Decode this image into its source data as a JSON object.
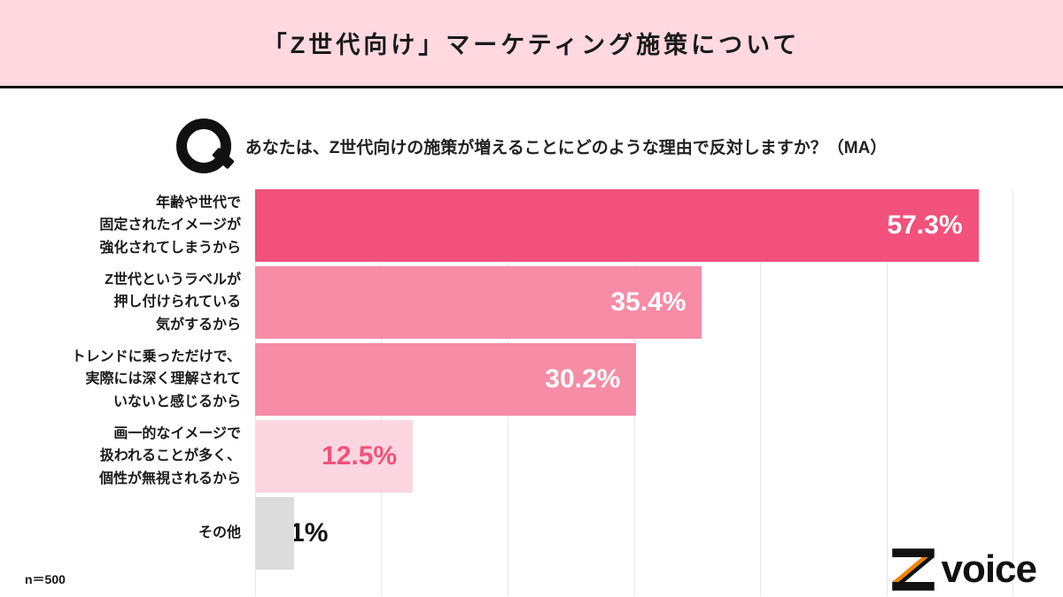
{
  "header": {
    "title": "「Z世代向け」マーケティング施策について",
    "bg_color": "#ffd8e0"
  },
  "question": {
    "icon": "Q-mark-icon",
    "text": "あなたは、Z世代向けの施策が増えることにどのような理由で反対しますか？（MA）"
  },
  "chart_data": {
    "type": "bar",
    "orientation": "horizontal",
    "title": "",
    "xlabel": "",
    "ylabel": "",
    "xlim": [
      0,
      60
    ],
    "gridline_step": 10,
    "grid": true,
    "legend": false,
    "categories": [
      "年齢や世代で固定されたイメージが強化されてしまうから",
      "Z世代というラベルが押し付けられている気がするから",
      "トレンドに乗っただけで、実際には深く理解されていないと感じるから",
      "画一的なイメージで扱われることが多く、個性が無視されるから",
      "その他"
    ],
    "values": [
      57.3,
      35.4,
      30.2,
      12.5,
      3.1
    ],
    "rows": [
      {
        "label_lines": [
          "年齢や世代で",
          "固定されたイメージが",
          "強化されてしまうから"
        ],
        "value": 57.3,
        "value_label": "57.3%",
        "bar_color": "#f2517b",
        "label_color": "#ffffff",
        "label_side": "right"
      },
      {
        "label_lines": [
          "Z世代というラベルが",
          "押し付けられている",
          "気がするから"
        ],
        "value": 35.4,
        "value_label": "35.4%",
        "bar_color": "#f78ca6",
        "label_color": "#ffffff",
        "label_side": "right"
      },
      {
        "label_lines": [
          "トレンドに乗っただけで、",
          "実際には深く理解されて",
          "いないと感じるから"
        ],
        "value": 30.2,
        "value_label": "30.2%",
        "bar_color": "#f78ca6",
        "label_color": "#ffffff",
        "label_side": "right"
      },
      {
        "label_lines": [
          "画一的なイメージで",
          "扱われることが多く、",
          "個性が無視されるから"
        ],
        "value": 12.5,
        "value_label": "12.5%",
        "bar_color": "#fbd6e0",
        "label_color": "#f2517b",
        "label_side": "right"
      },
      {
        "label_lines": [
          "その他"
        ],
        "value": 3.1,
        "value_label": "3.1%",
        "bar_color": "#dcdcdc",
        "label_color": "#111111",
        "label_side": "left"
      }
    ]
  },
  "footer": {
    "sample_size": "n＝500",
    "logo": {
      "letter": "Z",
      "word": "voice",
      "accent_color": "#f08300",
      "main_color": "#111111"
    }
  }
}
